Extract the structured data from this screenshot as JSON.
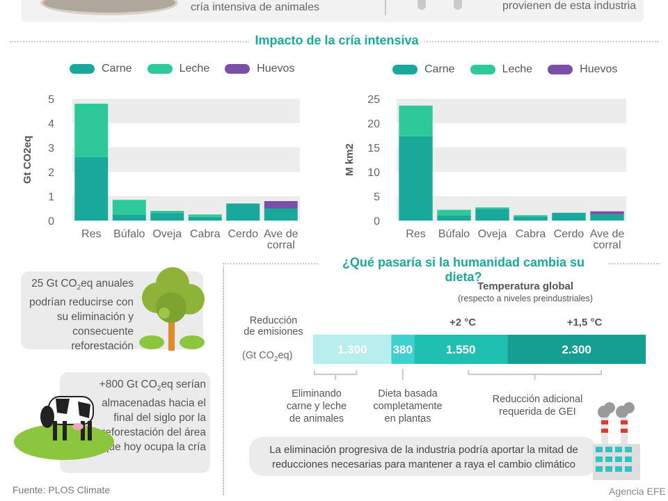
{
  "top": {
    "left_text": "cría intensiva de animales",
    "right_text": "provienen de esta industria"
  },
  "section1_title": "Impacto de la cría intensiva",
  "legend": [
    "Carne",
    "Leche",
    "Huevos"
  ],
  "colors": {
    "carne": "#1aa89a",
    "leche": "#2ec99a",
    "huevos": "#7b4fa7",
    "grid_band": "#ececec",
    "accent": "#1aa89a"
  },
  "chart_data": [
    {
      "type": "bar",
      "stacked": true,
      "ylabel": "Gt CO2eq",
      "ylim": [
        0,
        5
      ],
      "yticks": [
        0,
        1,
        2,
        3,
        4,
        5
      ],
      "categories": [
        "Res",
        "Búfalo",
        "Oveja",
        "Cabra",
        "Cerdo",
        "Ave de corral"
      ],
      "series": [
        {
          "name": "Carne",
          "values": [
            2.6,
            0.25,
            0.3,
            0.15,
            0.7,
            0.5
          ]
        },
        {
          "name": "Leche",
          "values": [
            2.2,
            0.6,
            0.1,
            0.1,
            0,
            0
          ]
        },
        {
          "name": "Huevos",
          "values": [
            0,
            0,
            0,
            0,
            0,
            0.3
          ]
        }
      ]
    },
    {
      "type": "bar",
      "stacked": true,
      "ylabel": "M km2",
      "ylim": [
        0,
        25
      ],
      "yticks": [
        0,
        5,
        10,
        15,
        20,
        25
      ],
      "categories": [
        "Res",
        "Búfalo",
        "Oveja",
        "Cabra",
        "Cerdo",
        "Ave de corral"
      ],
      "series": [
        {
          "name": "Carne",
          "values": [
            17.3,
            1.0,
            2.4,
            0.8,
            1.6,
            1.3
          ]
        },
        {
          "name": "Leche",
          "values": [
            6.3,
            1.2,
            0.3,
            0.3,
            0,
            0
          ]
        },
        {
          "name": "Huevos",
          "values": [
            0,
            0,
            0,
            0,
            0,
            0.6
          ]
        }
      ]
    },
    {
      "type": "bar",
      "stacked": true,
      "orientation": "horizontal",
      "unit": "Gt CO2eq",
      "segments": [
        {
          "label": "1.300",
          "value": 1300,
          "color": "#b9eeee",
          "description": "Eliminando carne y leche de animales"
        },
        {
          "label": "380",
          "value": 380,
          "color": "#3fd0d0",
          "description": "Dieta basada completamente en plantas"
        },
        {
          "label": "1.550",
          "value": 1550,
          "color": "#1fbfb2",
          "marker": "+2 °C"
        },
        {
          "label": "2.300",
          "value": 2300,
          "color": "#159e92",
          "marker": "+1,5 °C"
        }
      ]
    }
  ],
  "box1": {
    "pre": "25 Gt CO",
    "sub": "2",
    "post": "eq anuales podrían reducirse con su eliminación y consecuente reforestación"
  },
  "box2": {
    "pre": "+800 Gt CO",
    "sub": "2",
    "post": "eq serían almacenadas hacia el final del siglo por la reforestación del área que hoy ocupa la cría"
  },
  "section2_title": "¿Qué pasaría si la humanidad cambia su dieta?",
  "temp": {
    "title": "Temperatura global",
    "subtitle": "(respecto a niveles preindustriales)",
    "plus2": "+2 °C",
    "plus15": "+1,5 °C"
  },
  "emissions_label": {
    "line1": "Reducción",
    "line2": "de emisiones",
    "unit_pre": "(Gt CO",
    "unit_sub": "2",
    "unit_post": "eq)"
  },
  "annot": {
    "a1": [
      "Eliminando",
      "carne y leche",
      "de animales"
    ],
    "a2": [
      "Dieta basada",
      "completamente",
      "en plantas"
    ],
    "a3": [
      "Reducción adicional",
      "requerida de GEI"
    ]
  },
  "bottom_note": {
    "line1": "La eliminación progresiva de la industria podría aportar la mitad de",
    "line2": "reducciones necesarias para mantener a raya el cambio climático"
  },
  "footer": {
    "source": "Fuente: PLOS Climate",
    "agency": "Agencia EFE"
  }
}
